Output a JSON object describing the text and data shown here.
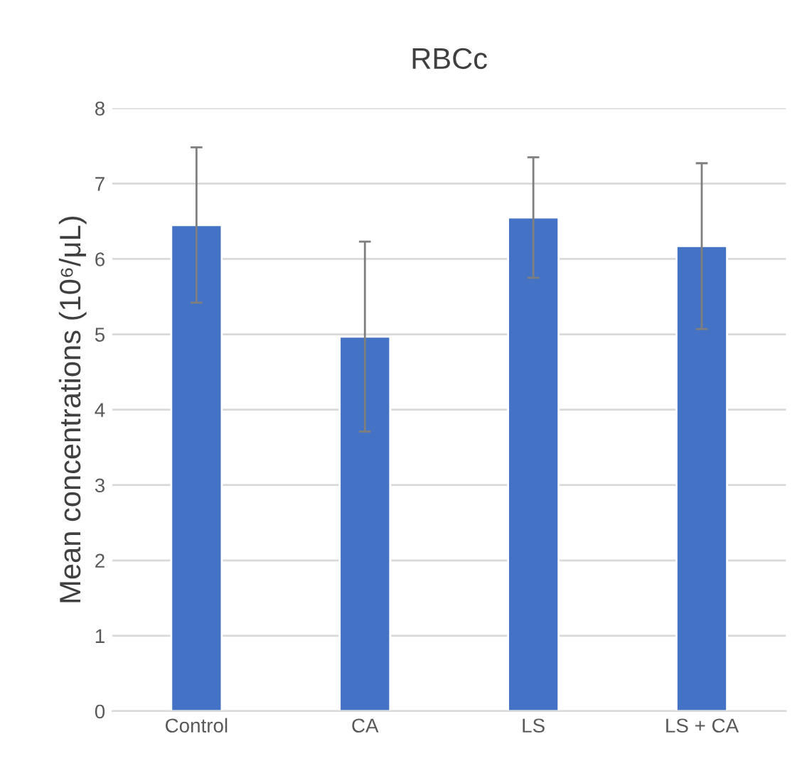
{
  "chart_data": {
    "type": "bar",
    "title": "RBCc",
    "ylabel": "Mean concentrations (10⁶/μL)",
    "categories": [
      "Control",
      "CA",
      "LS",
      "LS + CA"
    ],
    "values": [
      6.45,
      4.97,
      6.55,
      6.17
    ],
    "errors": [
      1.03,
      1.26,
      0.8,
      1.1
    ],
    "color": "#4472c4",
    "ylim": [
      0,
      8
    ],
    "yticks": [
      0,
      1,
      2,
      3,
      4,
      5,
      6,
      7,
      8
    ],
    "grid": "y"
  }
}
